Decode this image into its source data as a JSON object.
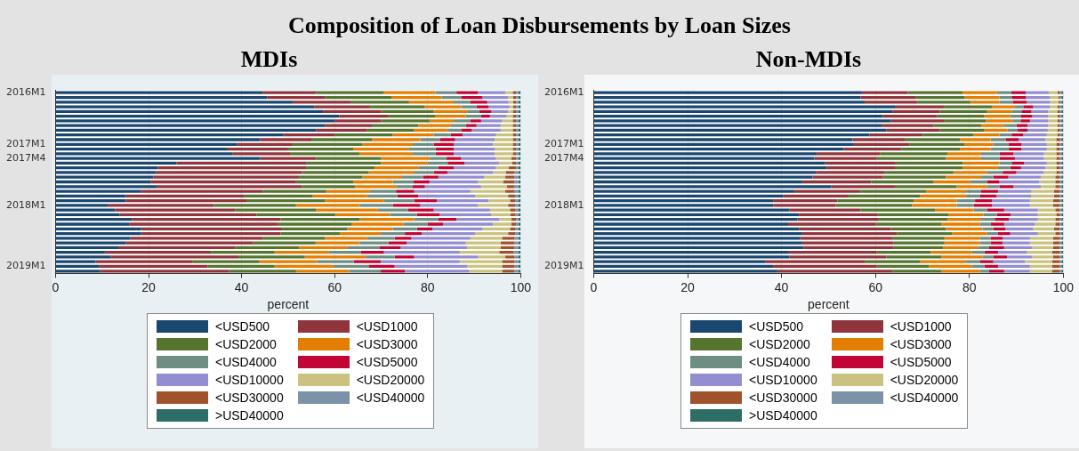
{
  "chart_data": [
    {
      "type": "bar",
      "orientation": "horizontal",
      "stacked": true,
      "title": "Composition of Loan Disbursements by Loan Sizes",
      "subtitle": "MDIs",
      "xlabel": "percent",
      "xlim": [
        0,
        100
      ],
      "xticks": [
        0,
        20,
        40,
        60,
        80,
        100
      ],
      "grid": "x",
      "legend": "bottom",
      "categories": [
        "2016M1",
        null,
        null,
        null,
        null,
        null,
        null,
        null,
        null,
        null,
        null,
        "2017M1",
        null,
        null,
        "2017M4",
        null,
        null,
        null,
        null,
        null,
        null,
        null,
        null,
        null,
        "2018M1",
        null,
        null,
        null,
        null,
        null,
        null,
        null,
        null,
        null,
        null,
        null,
        null,
        "2019M1",
        null
      ],
      "series": [
        {
          "name": "<USD500",
          "color": "#1a476f",
          "values": [
            44.5,
            45.5,
            51,
            55.6,
            57.5,
            61,
            60,
            58,
            56,
            49,
            44,
            39,
            37,
            38,
            44,
            26,
            22,
            21.5,
            21,
            20.4,
            21.7,
            18.4,
            15.1,
            15.1,
            11.2,
            12.8,
            13.8,
            16.4,
            15.8,
            18.4,
            18.4,
            16.1,
            15.1,
            13.5,
            10.6,
            11.9,
            8.6,
            9.3,
            9.6
          ]
        },
        {
          "name": "<USD1000",
          "color": "#90353b",
          "values": [
            11.5,
            12.5,
            12.4,
            12.0,
            12.5,
            10.6,
            10,
            10,
            11,
            11,
            11,
            12,
            13,
            12.4,
            12,
            28,
            32,
            31.5,
            31.3,
            31.3,
            31.3,
            26.1,
            25.5,
            26.1,
            22.8,
            25.8,
            29.4,
            32,
            31.9,
            30.3,
            30,
            28.4,
            27.4,
            25.1,
            22.8,
            27.4,
            20.9,
            23.4,
            27.7
          ]
        },
        {
          "name": "<USD2000",
          "color": "#55752f",
          "values": [
            14.6,
            14.2,
            12.6,
            11.8,
            11.3,
            10.1,
            10.4,
            10,
            10,
            12.5,
            13,
            15,
            14,
            15,
            14,
            16,
            14.6,
            14.3,
            13.7,
            12.3,
            11.4,
            13.7,
            14.7,
            16.7,
            17.7,
            17.4,
            16.9,
            17,
            16,
            14,
            12.7,
            13.4,
            13.4,
            13.7,
            13.7,
            14.3,
            14.3,
            14.4,
            14.4
          ]
        },
        {
          "name": "<USD3000",
          "color": "#e37e00",
          "values": [
            11.1,
            10.8,
            9.6,
            7.8,
            7.2,
            6.5,
            5.2,
            7,
            7.3,
            8.8,
            10.4,
            10.8,
            12,
            11.4,
            10.4,
            10,
            9.4,
            9.7,
            8.5,
            8.5,
            8.8,
            9.4,
            11.7,
            12.7,
            13.7,
            13.3,
            11.8,
            11.7,
            11.1,
            9.8,
            8.8,
            9.1,
            9.5,
            10.5,
            11.7,
            13.1,
            12.4,
            12.7,
            11.4
          ]
        },
        {
          "name": "<USD4000",
          "color": "#6e8e84",
          "values": [
            4.5,
            4.2,
            3.6,
            3.3,
            2.6,
            3.3,
            3.6,
            3.2,
            2.9,
            3.7,
            4.2,
            4.5,
            5.7,
            4.9,
            3.6,
            4.3,
            4.3,
            4.3,
            4.5,
            4.5,
            3.6,
            5.6,
            6.5,
            6.5,
            7.1,
            6.5,
            5.8,
            5.2,
            5.2,
            5.2,
            5.2,
            5.9,
            6.2,
            6.8,
            6.9,
            6.2,
            7.9,
            7.5,
            6.8
          ]
        },
        {
          "name": "<USD5000",
          "color": "#c10534",
          "values": [
            4.6,
            4.6,
            3.6,
            2.6,
            2.6,
            1.9,
            2.3,
            2.3,
            2.3,
            2.5,
            3.3,
            4.3,
            3.9,
            3.9,
            3.2,
            3.6,
            3.3,
            3.0,
            3.3,
            3.4,
            2.6,
            3.9,
            4.5,
            4.9,
            5.9,
            5.5,
            4.9,
            3.9,
            3.3,
            3.3,
            3.6,
            3.6,
            3.9,
            4.6,
            4.9,
            4.2,
            5.8,
            5.6,
            5.2
          ]
        },
        {
          "name": "<USD10000",
          "color": "#938dd2",
          "values": [
            5.9,
            5.5,
            4.6,
            4.5,
            3.6,
            3.6,
            4.5,
            5.2,
            6.2,
            7.2,
            8.5,
            8.4,
            8.8,
            8.8,
            7.5,
            7.5,
            9.1,
            9.7,
            9.8,
            10.4,
            12.1,
            12.1,
            12.2,
            11.1,
            12.4,
            12.1,
            11.1,
            9.2,
            10.7,
            10.8,
            11.5,
            12.7,
            12.7,
            14.3,
            16.3,
            13.7,
            17,
            15.6,
            13.8
          ]
        },
        {
          "name": "<USD20000",
          "color": "#cac27e",
          "values": [
            1.6,
            1.1,
            1.0,
            0.8,
            1.1,
            1.3,
            2.3,
            2.6,
            2.6,
            3.6,
            3.9,
            4.3,
            3.9,
            3.9,
            3.3,
            2.8,
            2.7,
            2.8,
            4.6,
            5.5,
            5.5,
            7.5,
            7.1,
            4.6,
            6.5,
            4.3,
            4.1,
            2.6,
            4.0,
            5.9,
            7.1,
            6.8,
            7.5,
            7.2,
            8.5,
            5.9,
            9.1,
            7.5,
            7.1
          ]
        },
        {
          "name": "<USD30000",
          "color": "#a0522d",
          "values": [
            0.7,
            0.6,
            0.6,
            0.6,
            0.6,
            0.7,
            0.7,
            0.7,
            0.7,
            0.7,
            0.7,
            0.7,
            0.7,
            0.7,
            1.0,
            0.8,
            1.6,
            1.9,
            2.0,
            2.4,
            1.6,
            1.9,
            1.5,
            1.2,
            1.5,
            1.2,
            1.1,
            1.0,
            1.0,
            1.2,
            1.5,
            2.7,
            3.0,
            3.0,
            3.1,
            2.0,
            2.7,
            2.7,
            2.7
          ]
        },
        {
          "name": "<USD40000",
          "color": "#7b92a8",
          "values": [
            0.5,
            0.5,
            0.5,
            0.5,
            0.5,
            0.5,
            0.5,
            0.5,
            0.5,
            0.5,
            0.5,
            0.5,
            0.5,
            0.5,
            0.5,
            0.5,
            0.5,
            0.8,
            0.8,
            0.8,
            0.9,
            0.9,
            0.7,
            0.6,
            0.7,
            0.6,
            0.6,
            0.5,
            0.5,
            0.6,
            0.7,
            0.8,
            0.8,
            0.8,
            1.0,
            0.8,
            0.8,
            0.8,
            0.8
          ]
        },
        {
          "name": ">USD40000",
          "color": "#2d6d66",
          "values": [
            0.5,
            0.5,
            0.5,
            0.5,
            0.5,
            0.5,
            0.5,
            0.5,
            0.5,
            0.5,
            0.5,
            0.5,
            0.5,
            0.5,
            0.5,
            0.5,
            0.5,
            0.5,
            0.5,
            0.5,
            0.5,
            0.5,
            0.5,
            0.5,
            0.5,
            0.5,
            0.5,
            0.5,
            0.5,
            0.5,
            0.5,
            0.5,
            0.5,
            0.5,
            0.5,
            0.5,
            0.5,
            0.5,
            0.5
          ]
        }
      ]
    },
    {
      "type": "bar",
      "orientation": "horizontal",
      "stacked": true,
      "title": "Non-MDIs",
      "xlabel": "percent",
      "xlim": [
        0,
        100
      ],
      "xticks": [
        0,
        20,
        40,
        60,
        80,
        100
      ],
      "grid": "x",
      "legend": "bottom",
      "categories": [
        "2016M1",
        null,
        null,
        null,
        null,
        null,
        null,
        null,
        null,
        null,
        null,
        "2017M1",
        null,
        null,
        "2017M4",
        null,
        null,
        null,
        null,
        null,
        null,
        null,
        null,
        null,
        "2018M1",
        null,
        null,
        null,
        null,
        null,
        null,
        null,
        null,
        null,
        null,
        null,
        null,
        "2019M1",
        null
      ],
      "series": [
        {
          "name": "<USD500",
          "color": "#1a476f",
          "values": [
            57.1,
            56.8,
            57.7,
            64.3,
            63.6,
            61.6,
            63.3,
            61.3,
            62.3,
            58.7,
            55.1,
            55.4,
            53.2,
            47.6,
            47,
            49.3,
            49.6,
            47.3,
            46.6,
            44.4,
            50.6,
            42.7,
            40.4,
            38.2,
            38.2,
            41.7,
            43.7,
            43.4,
            41.4,
            43.7,
            44.4,
            44,
            44.4,
            44.7,
            41.4,
            41.7,
            36.5,
            38.2,
            39.1
          ]
        },
        {
          "name": "<USD1000",
          "color": "#90353b",
          "values": [
            9.8,
            11.7,
            11.3,
            10.4,
            10.1,
            11.5,
            11.4,
            11.1,
            11.4,
            11.4,
            11.1,
            11.8,
            12.4,
            13.4,
            13.3,
            15,
            14.7,
            14.7,
            15,
            14.7,
            13.7,
            14.1,
            13.7,
            13.7,
            13.3,
            15.1,
            16.8,
            17.3,
            18.6,
            19.6,
            20.2,
            19.6,
            19.5,
            19.2,
            18.9,
            20.6,
            21.2,
            22.1,
            24.5
          ]
        },
        {
          "name": "<USD2000",
          "color": "#55752f",
          "values": [
            11.7,
            10.5,
            11.2,
            10.1,
            10.1,
            10.1,
            8.8,
            10.1,
            9.5,
            10.8,
            11.8,
            11.8,
            12.4,
            14.3,
            14.7,
            14.3,
            14.3,
            14.6,
            13.4,
            13.3,
            13,
            14,
            15.4,
            16.3,
            16.3,
            15.9,
            15,
            14.6,
            14,
            11.7,
            11.7,
            11.1,
            10.8,
            10.5,
            11.5,
            11.7,
            11.8,
            11.1,
            10.4
          ]
        },
        {
          "name": "<USD3000",
          "color": "#e37e00",
          "values": [
            7.2,
            7.4,
            6.2,
            4.9,
            5.2,
            5.5,
            5.8,
            4.9,
            4.9,
            5.5,
            6.5,
            6.1,
            6.5,
            7.2,
            7.5,
            7.8,
            7.5,
            7.2,
            7.5,
            7.8,
            6.5,
            8.5,
            9.8,
            9.1,
            9.5,
            8.2,
            7.5,
            7.2,
            8.2,
            7.8,
            7.5,
            7.5,
            7.5,
            7.5,
            8.8,
            8.8,
            9.8,
            9.2,
            8.2
          ]
        },
        {
          "name": "<USD4000",
          "color": "#6e8e84",
          "values": [
            3.1,
            2.6,
            2.8,
            1.9,
            2.1,
            2.2,
            1.6,
            2.6,
            2.2,
            2.6,
            3.2,
            3.2,
            3.9,
            3.9,
            3.9,
            2.6,
            2.6,
            3.3,
            2.6,
            3.6,
            2.6,
            3.2,
            2.9,
            3.9,
            3.6,
            2.9,
            2.9,
            2.9,
            2.3,
            2.3,
            2.3,
            2.3,
            2.3,
            2.3,
            2.6,
            2.3,
            2.9,
            2.6,
            2.0
          ]
        },
        {
          "name": "<USD5000",
          "color": "#c10534",
          "values": [
            3.1,
            3.0,
            3.0,
            2.0,
            2.1,
            2.5,
            2.0,
            2.4,
            2.1,
            2.5,
            2.8,
            2.8,
            2.7,
            3.0,
            3.3,
            2.6,
            2.3,
            2.9,
            3.2,
            2.6,
            3.0,
            3.6,
            3.6,
            3.6,
            3.9,
            3.6,
            2.9,
            3.0,
            2.9,
            2.6,
            2.6,
            2.6,
            2.6,
            3.2,
            2.9,
            2.9,
            2.9,
            2.9,
            3.2
          ]
        },
        {
          "name": "<USD10000",
          "color": "#938dd2",
          "values": [
            4.9,
            5.2,
            5.0,
            3.6,
            3.6,
            3.4,
            3.9,
            4.4,
            4.3,
            5.0,
            5.7,
            5.4,
            5.4,
            6.5,
            6.2,
            4.9,
            5.2,
            5.9,
            6.9,
            8.5,
            5.8,
            7.1,
            7.4,
            8.1,
            8.1,
            7.2,
            5.8,
            6.2,
            6.5,
            5.9,
            5.9,
            5.8,
            5.8,
            5.9,
            6.2,
            5.3,
            6.8,
            6.8,
            5.5
          ]
        },
        {
          "name": "<USD20000",
          "color": "#cac27e",
          "values": [
            1.9,
            1.8,
            1.8,
            1.6,
            2.0,
            2.0,
            2.0,
            2.0,
            2.1,
            2.3,
            2.3,
            2.0,
            2.0,
            2.6,
            2.6,
            2.0,
            2.3,
            2.6,
            3.1,
            3.4,
            3.1,
            4.8,
            4.8,
            4.9,
            4.9,
            3.7,
            3.9,
            3.7,
            4.4,
            4.4,
            3.7,
            4.9,
            4.9,
            4.5,
            5.3,
            4.5,
            5.7,
            4.7,
            4.7
          ]
        },
        {
          "name": "<USD30000",
          "color": "#a0522d",
          "values": [
            0.5,
            0.3,
            0.3,
            0.5,
            0.5,
            0.5,
            0.5,
            0.5,
            0.5,
            0.5,
            0.8,
            0.8,
            0.8,
            0.8,
            0.8,
            0.8,
            0.8,
            0.8,
            1.0,
            1.0,
            1.0,
            1.3,
            1.3,
            1.5,
            1.5,
            1.0,
            0.8,
            1.0,
            1.0,
            1.3,
            1.0,
            1.5,
            1.5,
            1.5,
            1.7,
            1.5,
            1.7,
            1.7,
            1.7
          ]
        },
        {
          "name": "<USD40000",
          "color": "#7b92a8",
          "values": [
            0.3,
            0.3,
            0.3,
            0.3,
            0.3,
            0.3,
            0.3,
            0.3,
            0.3,
            0.3,
            0.3,
            0.3,
            0.3,
            0.3,
            0.3,
            0.3,
            0.3,
            0.3,
            0.3,
            0.3,
            0.3,
            0.3,
            0.3,
            0.3,
            0.3,
            0.3,
            0.3,
            0.3,
            0.3,
            0.3,
            0.3,
            0.3,
            0.3,
            0.3,
            0.3,
            0.3,
            0.3,
            0.3,
            0.3
          ]
        },
        {
          "name": ">USD40000",
          "color": "#2d6d66",
          "values": [
            0.4,
            0.4,
            0.4,
            0.4,
            0.4,
            0.4,
            0.4,
            0.4,
            0.4,
            0.4,
            0.4,
            0.4,
            0.4,
            0.4,
            0.4,
            0.4,
            0.4,
            0.4,
            0.4,
            0.4,
            0.4,
            0.4,
            0.4,
            0.4,
            0.4,
            0.4,
            0.4,
            0.4,
            0.4,
            0.4,
            0.4,
            0.4,
            0.4,
            0.4,
            0.4,
            0.4,
            0.4,
            0.4,
            0.4
          ]
        }
      ]
    }
  ]
}
